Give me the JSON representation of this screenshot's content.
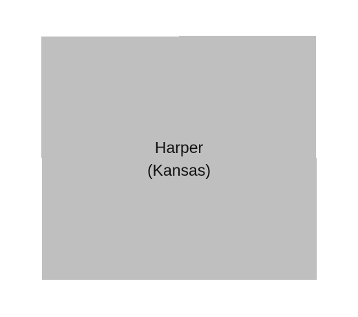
{
  "map": {
    "county_name": "Harper",
    "state_label": "(Kansas)",
    "fill_color": "#bfbfbf",
    "background_color": "#ffffff",
    "label_color": "#111111"
  }
}
